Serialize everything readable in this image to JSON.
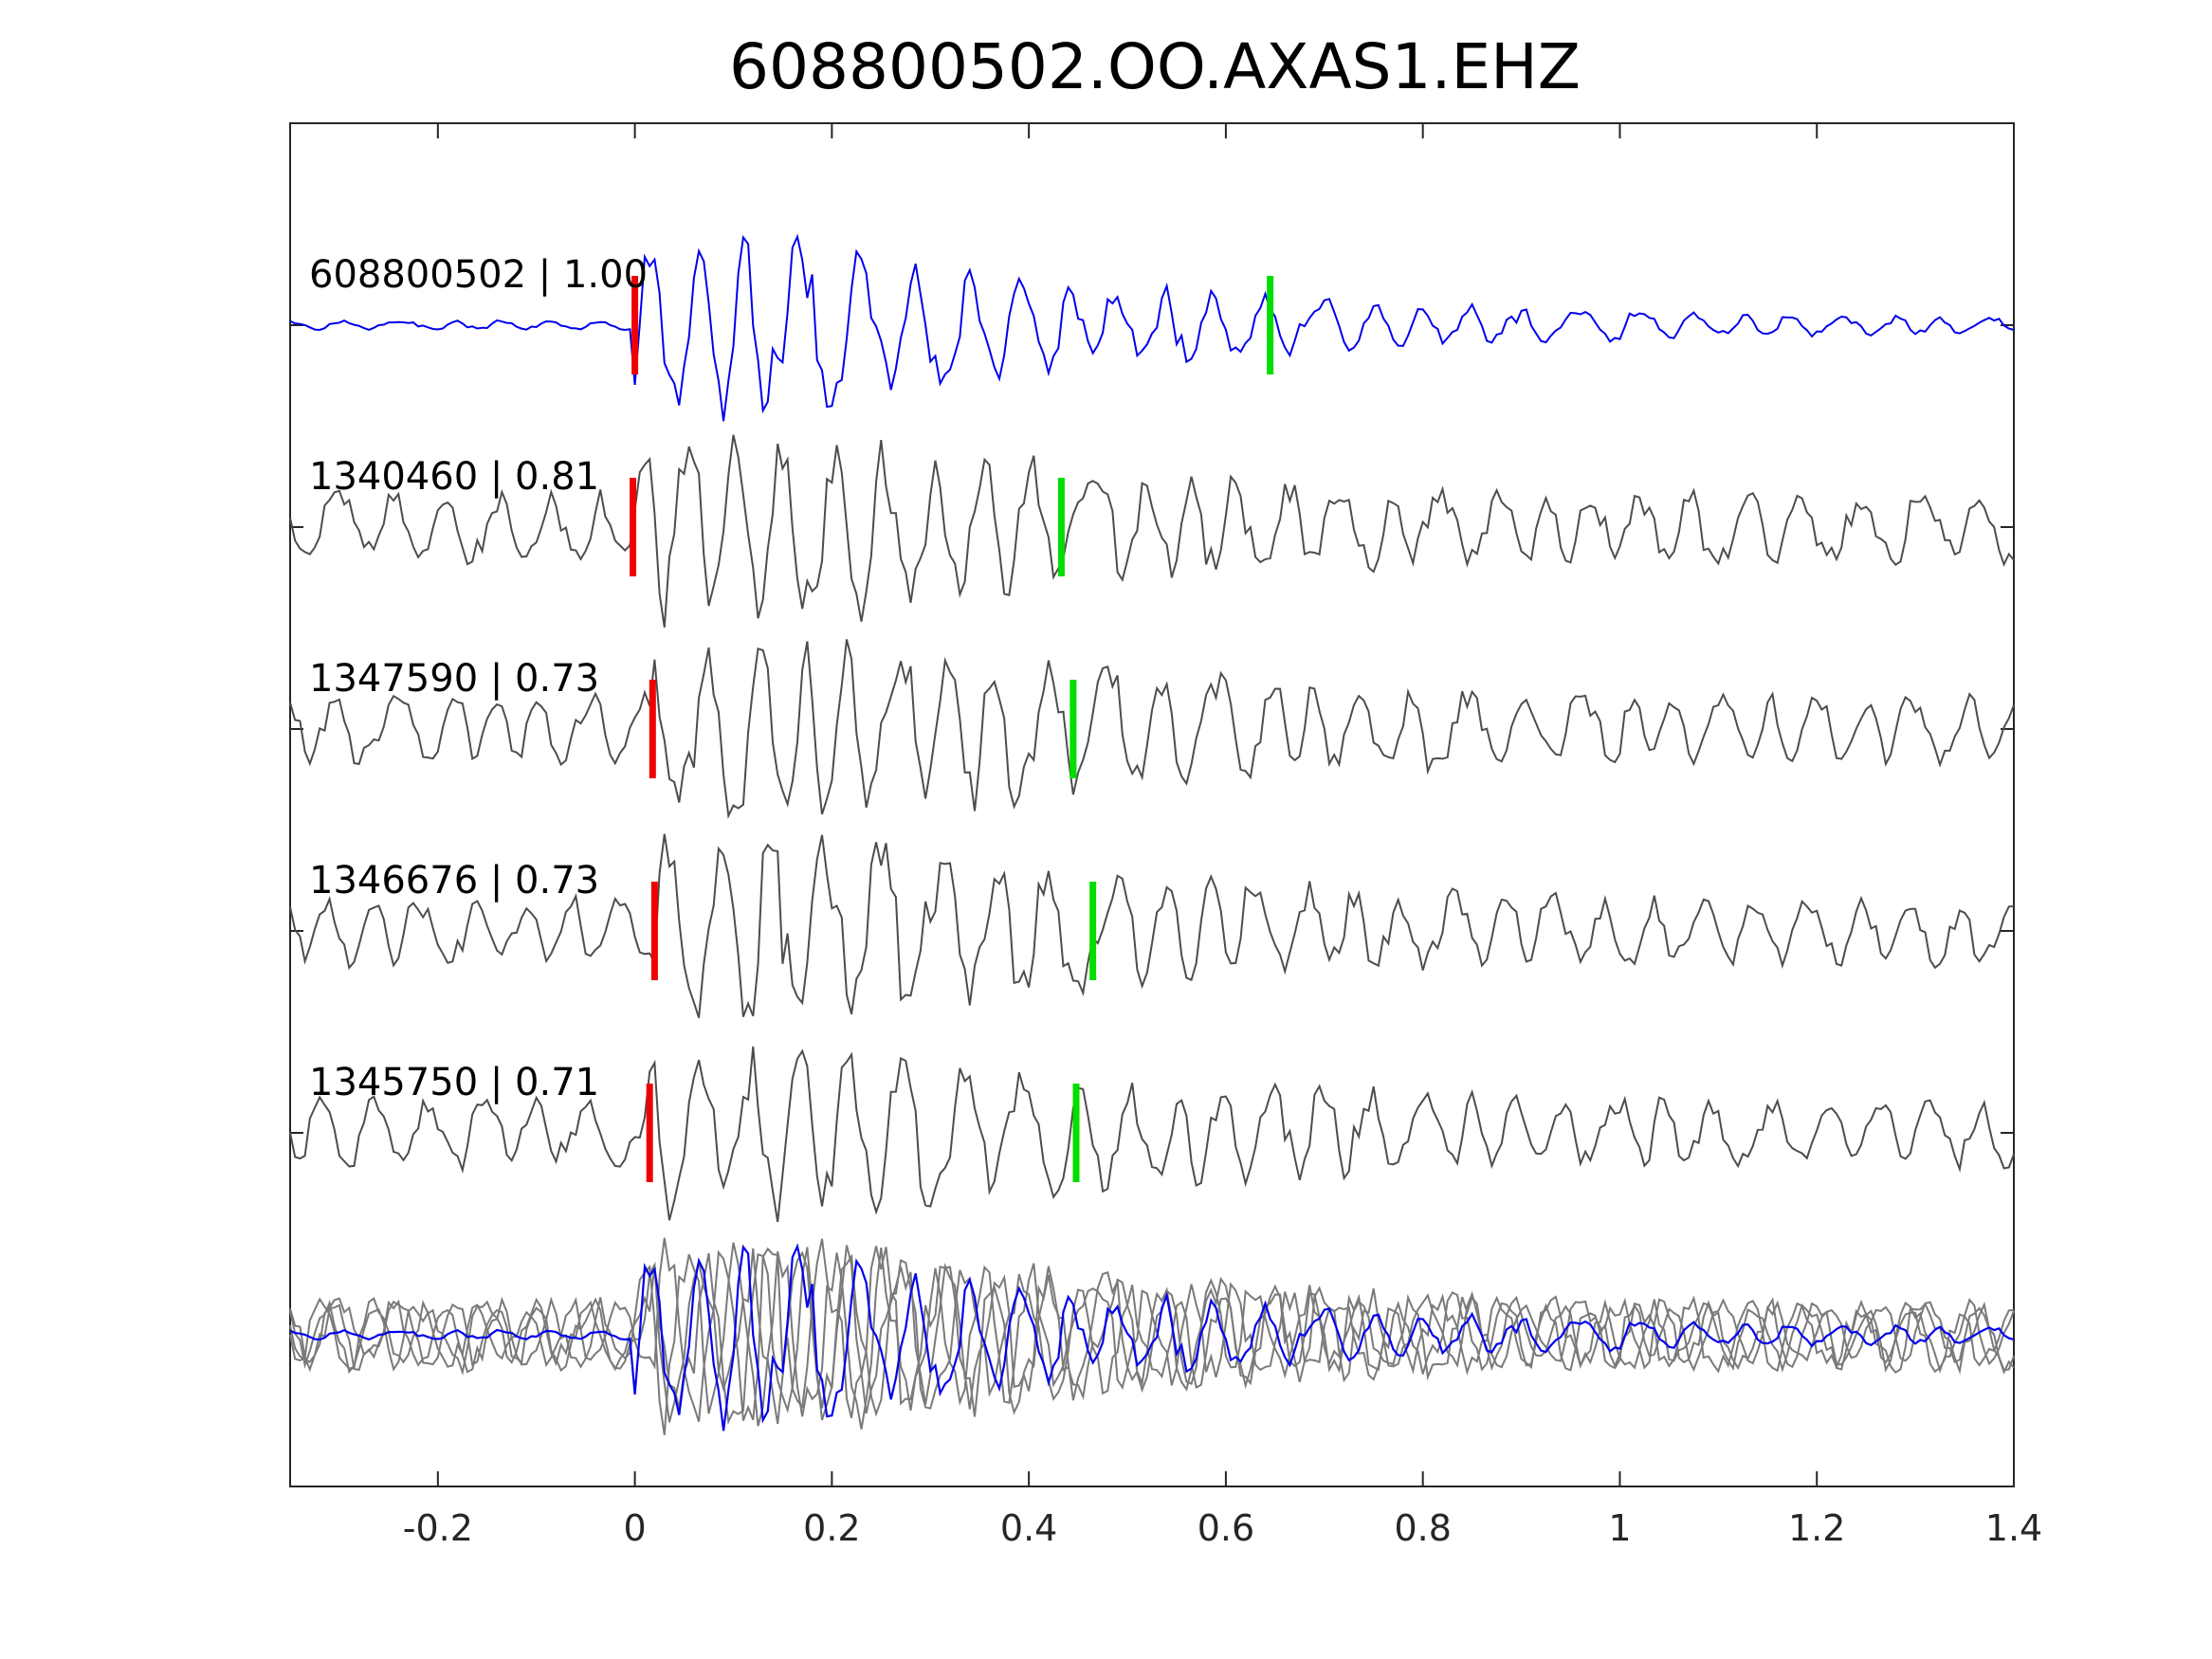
{
  "chart_data": {
    "type": "line",
    "title": "608800502.OO.AXAS1.EHZ",
    "xlabel": "",
    "ylabel": "",
    "xlim": [
      -0.35,
      1.4
    ],
    "x_ticks": [
      -0.2,
      0,
      0.2,
      0.4,
      0.6,
      0.8,
      1,
      1.2,
      1.4
    ],
    "x_tick_labels": [
      "-0.2",
      "0",
      "0.2",
      "0.4",
      "0.6",
      "0.8",
      "1",
      "1.2",
      "1.4"
    ],
    "grid": false,
    "legend": "none",
    "colors": {
      "template": "#0000ee",
      "detection": "#4d4d4d",
      "overlay_detection": "#7a7a7a",
      "p_pick": "#ee0000",
      "s_pick": "#00dd00",
      "axes": "#262626"
    },
    "series": [
      {
        "label": "608800502 | 1.00",
        "p_pick": 0.0,
        "s_pick": 0.645
      },
      {
        "label": "1340460 | 0.81",
        "p_pick": -0.002,
        "s_pick": 0.433
      },
      {
        "label": "1347590 | 0.73",
        "p_pick": 0.018,
        "s_pick": 0.445
      },
      {
        "label": "1346676 | 0.73",
        "p_pick": 0.02,
        "s_pick": 0.465
      },
      {
        "label": "1345750 | 0.71",
        "p_pick": 0.015,
        "s_pick": 0.448
      }
    ],
    "overlay": {
      "label": ""
    }
  }
}
